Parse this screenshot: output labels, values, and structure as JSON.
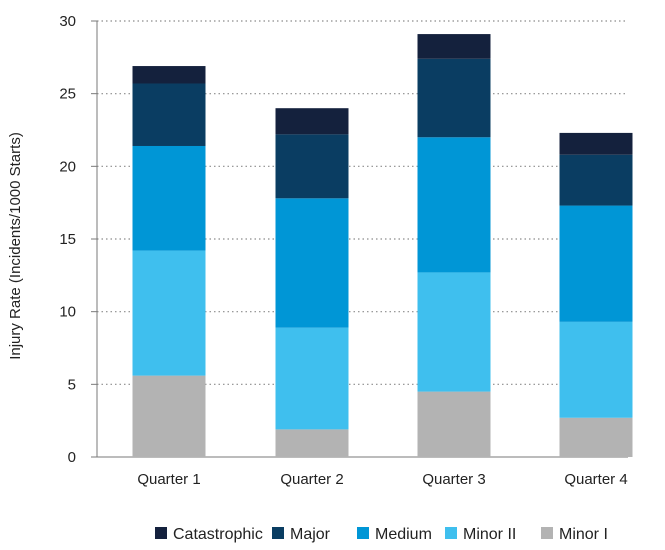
{
  "chart_data": {
    "type": "bar",
    "stacked": true,
    "title": "",
    "xlabel": "",
    "ylabel": "Injury Rate (Incidents/1000 Starts)",
    "ylim": [
      0,
      30
    ],
    "yticks": [
      0,
      5,
      10,
      15,
      20,
      25,
      30
    ],
    "grid": "horizontal-dotted",
    "legend_position": "bottom",
    "categories": [
      "Quarter 1",
      "Quarter 2",
      "Quarter 3",
      "Quarter 4"
    ],
    "series": [
      {
        "name": "Minor I",
        "color": "#b3b3b3",
        "values": [
          5.6,
          1.9,
          4.5,
          2.7
        ]
      },
      {
        "name": "Minor II",
        "color": "#3fbfee",
        "values": [
          8.6,
          7.0,
          8.2,
          6.6
        ]
      },
      {
        "name": "Medium",
        "color": "#0096d6",
        "values": [
          7.2,
          8.9,
          9.3,
          8.0
        ]
      },
      {
        "name": "Major",
        "color": "#0a3d62",
        "values": [
          4.3,
          4.4,
          5.4,
          3.5
        ]
      },
      {
        "name": "Catastrophic",
        "color": "#14213d",
        "values": [
          1.2,
          1.8,
          1.7,
          1.5
        ]
      }
    ],
    "legend_order": [
      "Catastrophic",
      "Major",
      "Medium",
      "Minor II",
      "Minor I"
    ]
  }
}
